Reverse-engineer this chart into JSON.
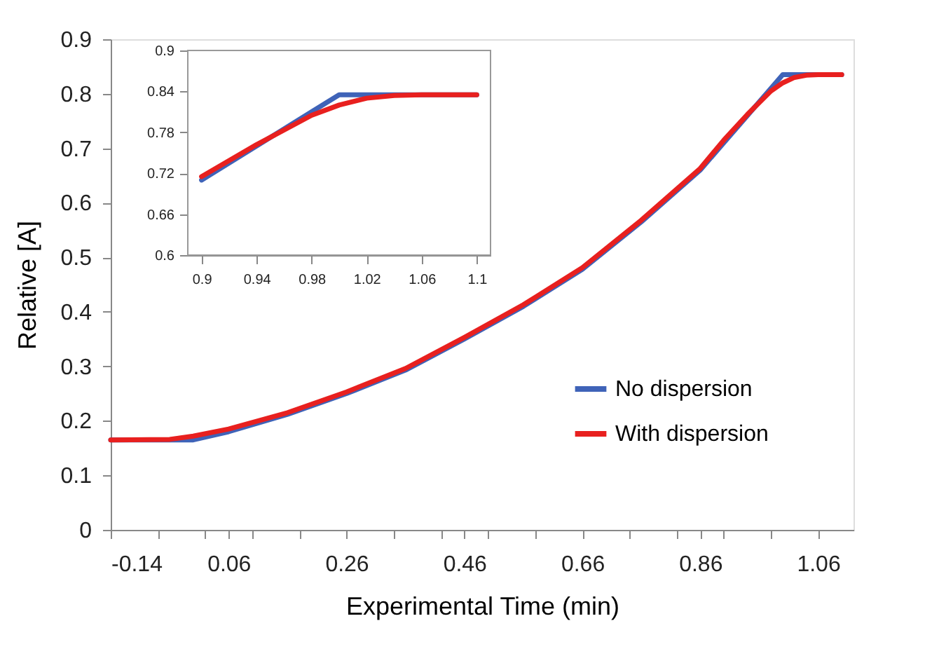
{
  "chart_data": [
    {
      "type": "line",
      "xlabel": "Experimental Time (min)",
      "ylabel": "Relative [A]",
      "xlim": [
        -0.14,
        1.12
      ],
      "ylim": [
        0,
        0.9
      ],
      "xticks": [
        -0.14,
        {
          "value": -0.06,
          "label": null
        },
        0.06,
        {
          "value": 0.02,
          "label": null
        },
        {
          "value": 0.1,
          "label": null
        },
        {
          "value": 0.18,
          "label": null
        },
        0.26,
        {
          "value": 0.34,
          "label": null
        },
        {
          "value": 0.42,
          "label": null
        },
        0.46,
        {
          "value": 0.5,
          "label": null
        },
        {
          "value": 0.58,
          "label": null
        },
        0.66,
        {
          "value": 0.74,
          "label": null
        },
        {
          "value": 0.82,
          "label": null
        },
        0.86,
        {
          "value": 0.9,
          "label": null
        },
        {
          "value": 0.98,
          "label": null
        },
        1.06
      ],
      "yticks": [
        0,
        0.1,
        0.2,
        0.3,
        0.4,
        0.5,
        0.6,
        0.7,
        0.8,
        0.9
      ],
      "grid": false,
      "legend": "bottom right",
      "line_style": "solid",
      "marker": "none",
      "series": [
        {
          "name": "No dispersion",
          "color": "#3f63b8",
          "x": [
            -0.14,
            0.0,
            0.06,
            0.16,
            0.26,
            0.36,
            0.46,
            0.56,
            0.66,
            0.76,
            0.86,
            0.9,
            0.94,
            0.98,
            1.0,
            1.1
          ],
          "values": [
            0.165,
            0.165,
            0.18,
            0.212,
            0.25,
            0.293,
            0.35,
            0.41,
            0.478,
            0.565,
            0.66,
            0.71,
            0.76,
            0.81,
            0.835,
            0.835
          ]
        },
        {
          "name": "With dispersion",
          "color": "#e8201f",
          "x": [
            -0.14,
            -0.04,
            0.0,
            0.06,
            0.16,
            0.26,
            0.36,
            0.46,
            0.56,
            0.66,
            0.76,
            0.86,
            0.9,
            0.94,
            0.98,
            1.0,
            1.02,
            1.04,
            1.06,
            1.1
          ],
          "values": [
            0.165,
            0.166,
            0.172,
            0.185,
            0.215,
            0.253,
            0.296,
            0.353,
            0.413,
            0.481,
            0.568,
            0.663,
            0.715,
            0.762,
            0.805,
            0.82,
            0.83,
            0.834,
            0.835,
            0.835
          ]
        }
      ]
    },
    {
      "type": "line",
      "xlim": [
        0.89,
        1.11
      ],
      "ylim": [
        0.6,
        0.9
      ],
      "xticks": [
        0.9,
        0.94,
        0.98,
        1.02,
        1.06,
        1.1
      ],
      "yticks": [
        0.6,
        0.66,
        0.72,
        0.78,
        0.84,
        0.9
      ],
      "grid": false,
      "line_style": "solid",
      "marker": "none",
      "series": [
        {
          "name": "No dispersion",
          "color": "#3f63b8",
          "x": [
            0.9,
            0.94,
            0.98,
            1.0,
            1.1
          ],
          "values": [
            0.71,
            0.76,
            0.81,
            0.835,
            0.835
          ]
        },
        {
          "name": "With dispersion",
          "color": "#e8201f",
          "x": [
            0.9,
            0.94,
            0.98,
            1.0,
            1.02,
            1.04,
            1.06,
            1.1
          ],
          "values": [
            0.715,
            0.762,
            0.805,
            0.82,
            0.83,
            0.834,
            0.835,
            0.835
          ]
        }
      ]
    }
  ]
}
